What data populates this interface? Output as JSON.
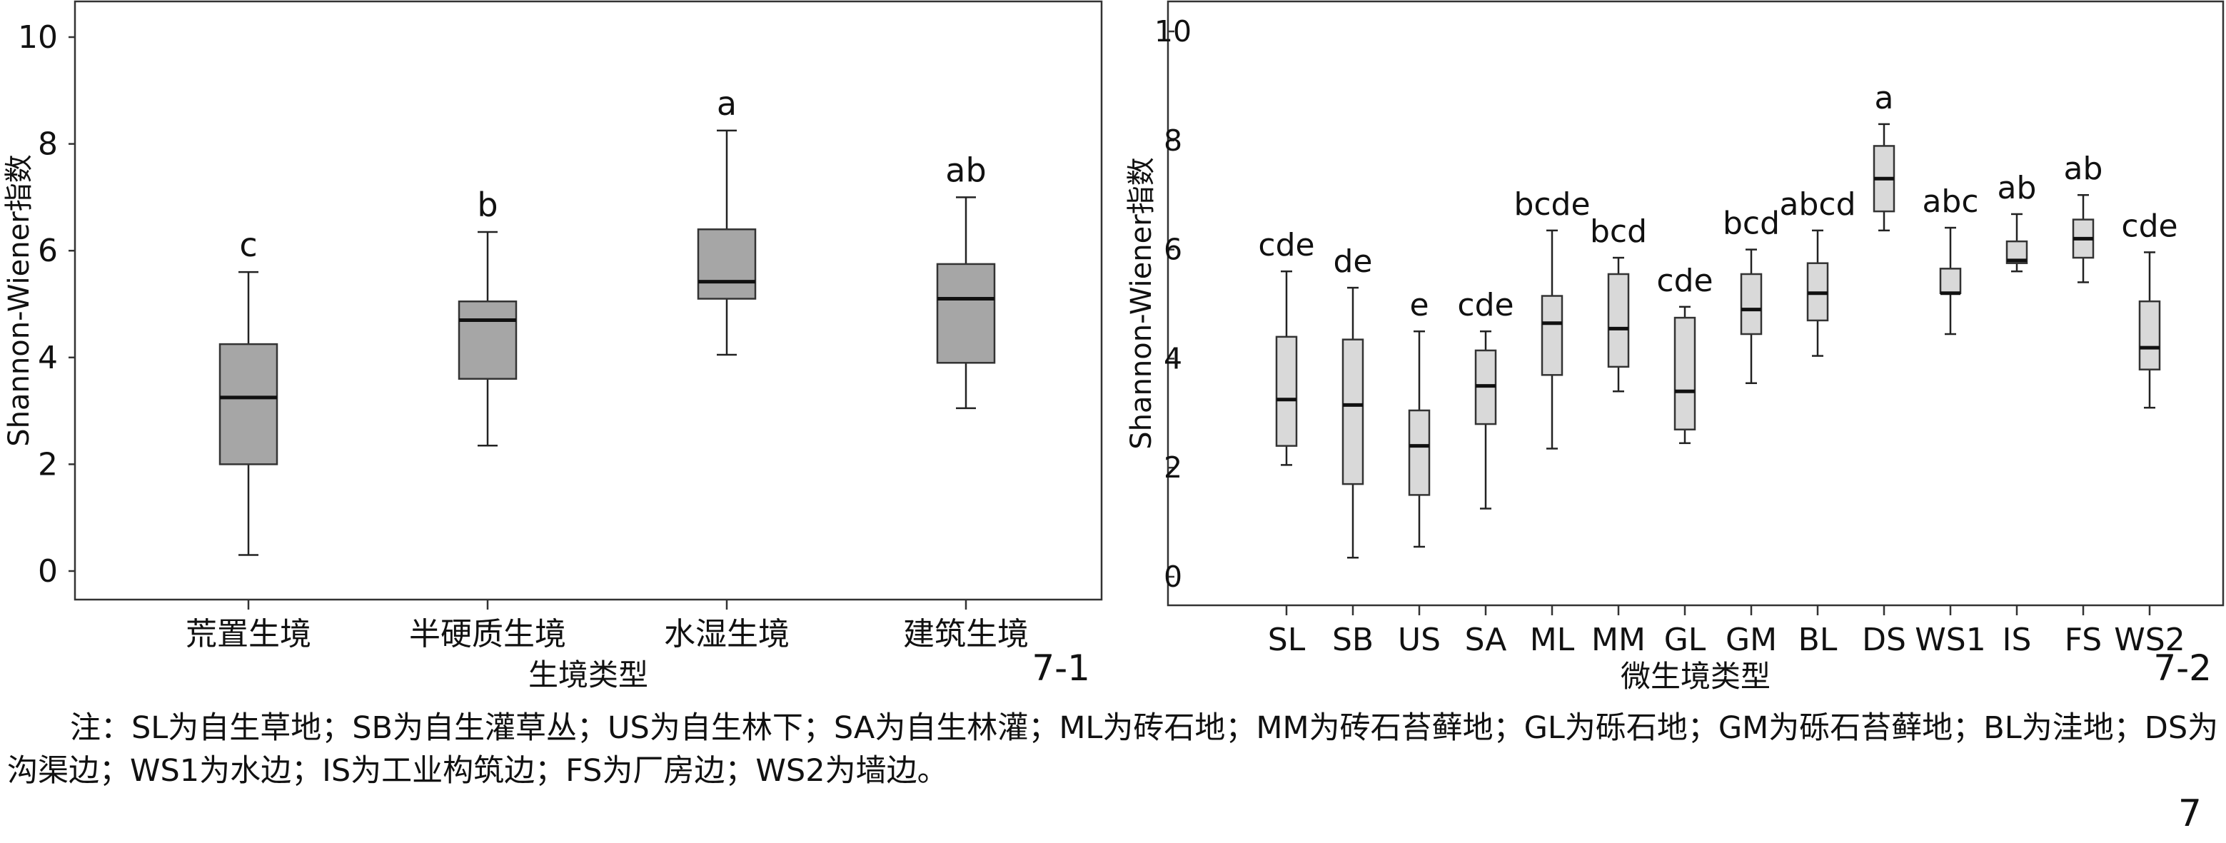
{
  "chart_data": [
    {
      "type": "box",
      "panel_label": "7-1",
      "title": "",
      "xlabel": "生境类型",
      "ylabel": "Shannon-Wiener指数",
      "ylim": [
        -0.5,
        10.5
      ],
      "yticks": [
        0,
        2,
        4,
        6,
        8,
        10
      ],
      "categories": [
        "荒置生境",
        "半硬质生境",
        "水湿生境",
        "建筑生境"
      ],
      "box_color": "#a6a6a6",
      "series": [
        {
          "category": "荒置生境",
          "min": 0.3,
          "q1": 2.0,
          "median": 3.25,
          "q3": 4.25,
          "max": 5.6,
          "letter": "c"
        },
        {
          "category": "半硬质生境",
          "min": 2.35,
          "q1": 3.6,
          "median": 4.7,
          "q3": 5.05,
          "max": 6.35,
          "letter": "b"
        },
        {
          "category": "水湿生境",
          "min": 4.05,
          "q1": 5.1,
          "median": 5.42,
          "q3": 6.4,
          "max": 8.25,
          "letter": "a"
        },
        {
          "category": "建筑生境",
          "min": 3.05,
          "q1": 3.9,
          "median": 5.1,
          "q3": 5.75,
          "max": 7.0,
          "letter": "ab"
        }
      ]
    },
    {
      "type": "box",
      "panel_label": "7-2",
      "title": "",
      "xlabel": "微生境类型",
      "ylabel": "Shannon-Wiener指数",
      "ylim": [
        -0.5,
        10.5
      ],
      "yticks": [
        0,
        2,
        4,
        6,
        8,
        10
      ],
      "categories": [
        "SL",
        "SB",
        "US",
        "SA",
        "ML",
        "MM",
        "GL",
        "GM",
        "BL",
        "DS",
        "WS1",
        "IS",
        "FS",
        "WS2"
      ],
      "box_color": "#d9d9d9",
      "series": [
        {
          "category": "SL",
          "min": 2.05,
          "q1": 2.4,
          "median": 3.25,
          "q3": 4.4,
          "max": 5.6,
          "letter": "cde"
        },
        {
          "category": "SB",
          "min": 0.35,
          "q1": 1.7,
          "median": 3.15,
          "q3": 4.35,
          "max": 5.3,
          "letter": "de"
        },
        {
          "category": "US",
          "min": 0.55,
          "q1": 1.5,
          "median": 2.4,
          "q3": 3.05,
          "max": 4.5,
          "letter": "e"
        },
        {
          "category": "SA",
          "min": 1.25,
          "q1": 2.8,
          "median": 3.5,
          "q3": 4.15,
          "max": 4.5,
          "letter": "cde"
        },
        {
          "category": "ML",
          "min": 2.35,
          "q1": 3.7,
          "median": 4.65,
          "q3": 5.15,
          "max": 6.35,
          "letter": "bcde"
        },
        {
          "category": "MM",
          "min": 3.4,
          "q1": 3.85,
          "median": 4.55,
          "q3": 5.55,
          "max": 5.85,
          "letter": "bcd"
        },
        {
          "category": "GL",
          "min": 2.45,
          "q1": 2.7,
          "median": 3.4,
          "q3": 4.75,
          "max": 4.95,
          "letter": "cde"
        },
        {
          "category": "GM",
          "min": 3.55,
          "q1": 4.45,
          "median": 4.9,
          "q3": 5.55,
          "max": 6.0,
          "letter": "bcd"
        },
        {
          "category": "BL",
          "min": 4.05,
          "q1": 4.7,
          "median": 5.2,
          "q3": 5.75,
          "max": 6.35,
          "letter": "abcd"
        },
        {
          "category": "DS",
          "min": 6.35,
          "q1": 6.7,
          "median": 7.3,
          "q3": 7.9,
          "max": 8.3,
          "letter": "a"
        },
        {
          "category": "WS1",
          "min": 4.45,
          "q1": 5.2,
          "median": 5.2,
          "q3": 5.65,
          "max": 6.4,
          "letter": "abc"
        },
        {
          "category": "IS",
          "min": 5.6,
          "q1": 5.75,
          "median": 5.8,
          "q3": 6.15,
          "max": 6.65,
          "letter": "ab"
        },
        {
          "category": "FS",
          "min": 5.4,
          "q1": 5.85,
          "median": 6.2,
          "q3": 6.55,
          "max": 7.0,
          "letter": "ab"
        },
        {
          "category": "WS2",
          "min": 3.1,
          "q1": 3.8,
          "median": 4.2,
          "q3": 5.05,
          "max": 5.95,
          "letter": "cde"
        }
      ]
    }
  ],
  "note": "注：SL为自生草地；SB为自生灌草丛；US为自生林下；SA为自生林灌；ML为砖石地；MM为砖石苔藓地；GL为砾石地；GM为砾石苔藓地；BL为洼地；DS为沟渠边；WS1为水边；IS为工业构筑边；FS为厂房边；WS2为墙边。",
  "page_number": "7"
}
